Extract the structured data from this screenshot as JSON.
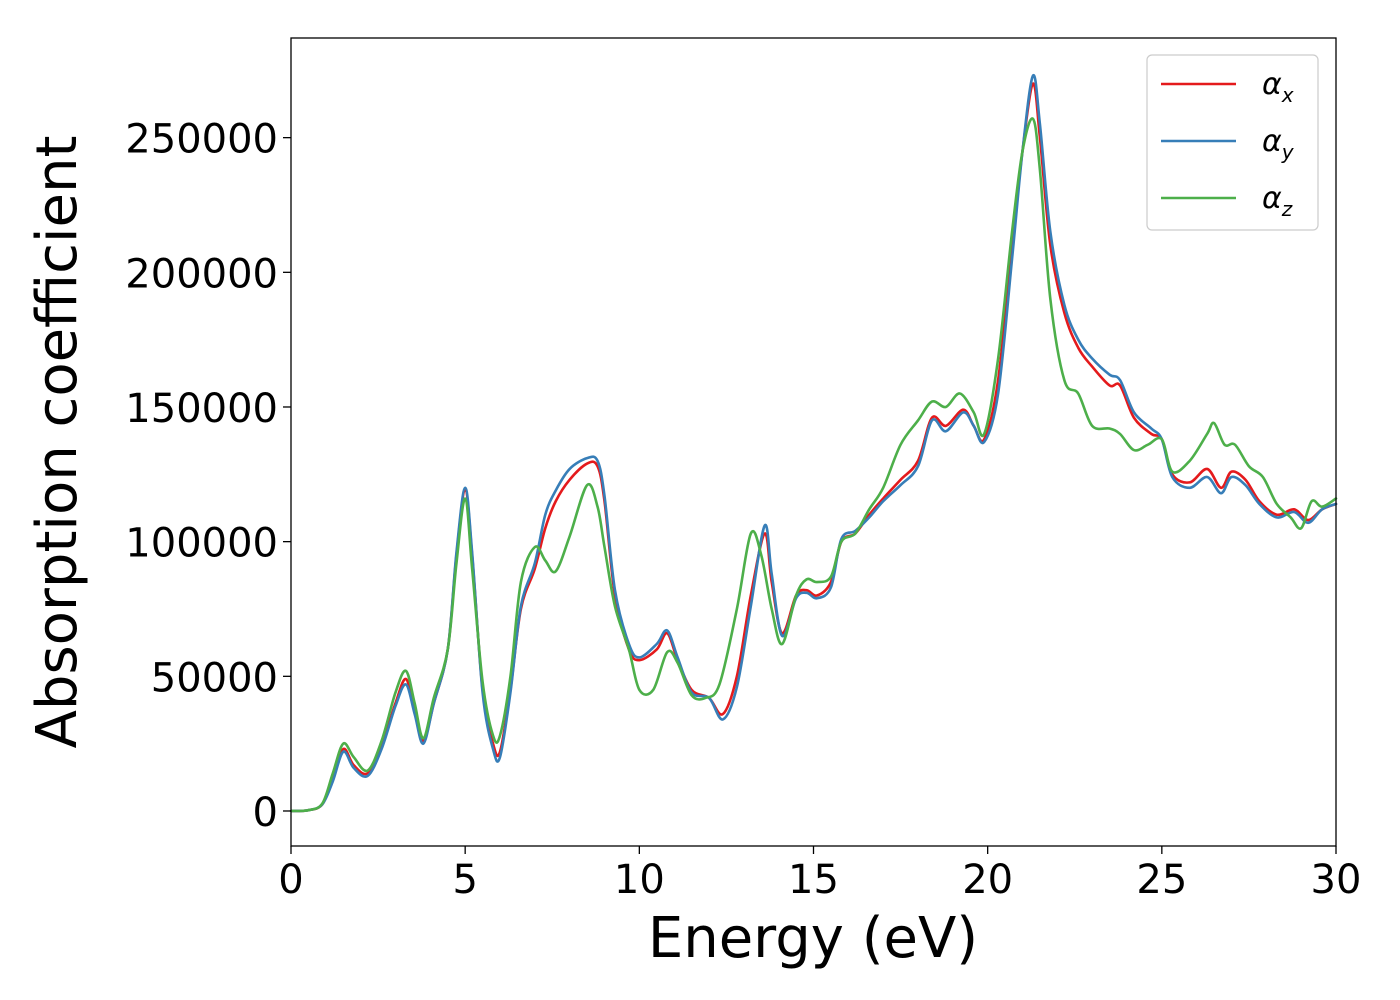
{
  "chart_data": {
    "type": "line",
    "xlabel": "Energy (eV)",
    "ylabel": "Absorption coefficient",
    "xlim": [
      0,
      30
    ],
    "ylim": [
      -13000,
      287000
    ],
    "xticks": [
      0,
      5,
      10,
      15,
      20,
      25,
      30
    ],
    "xtick_labels": [
      "0",
      "5",
      "10",
      "15",
      "20",
      "25",
      "30"
    ],
    "yticks": [
      0,
      50000,
      100000,
      150000,
      200000,
      250000
    ],
    "ytick_labels": [
      "0",
      "50000",
      "100000",
      "150000",
      "200000",
      "250000"
    ],
    "grid": false,
    "legend_position": "top-right",
    "series": [
      {
        "name": "αx",
        "symbol": "α",
        "subscript": "x",
        "color": "#e41a1c",
        "points": [
          [
            0,
            0
          ],
          [
            0.5,
            300
          ],
          [
            0.9,
            2500
          ],
          [
            1.2,
            12000
          ],
          [
            1.5,
            23000
          ],
          [
            1.8,
            17000
          ],
          [
            2.2,
            14000
          ],
          [
            2.6,
            24000
          ],
          [
            3.0,
            40000
          ],
          [
            3.3,
            49000
          ],
          [
            3.55,
            37000
          ],
          [
            3.8,
            26000
          ],
          [
            4.1,
            40000
          ],
          [
            4.5,
            60000
          ],
          [
            4.75,
            95000
          ],
          [
            5.0,
            119000
          ],
          [
            5.2,
            95000
          ],
          [
            5.5,
            45000
          ],
          [
            5.8,
            25000
          ],
          [
            6.0,
            22000
          ],
          [
            6.3,
            45000
          ],
          [
            6.6,
            75000
          ],
          [
            7.0,
            90000
          ],
          [
            7.3,
            105000
          ],
          [
            7.6,
            115000
          ],
          [
            8.0,
            123000
          ],
          [
            8.5,
            129000
          ],
          [
            8.8,
            128000
          ],
          [
            9.0,
            115000
          ],
          [
            9.3,
            80000
          ],
          [
            9.7,
            60000
          ],
          [
            10.0,
            56000
          ],
          [
            10.5,
            60000
          ],
          [
            10.8,
            66000
          ],
          [
            11.1,
            56000
          ],
          [
            11.5,
            45000
          ],
          [
            12.0,
            42000
          ],
          [
            12.4,
            36000
          ],
          [
            12.8,
            50000
          ],
          [
            13.2,
            80000
          ],
          [
            13.6,
            103000
          ],
          [
            13.8,
            85000
          ],
          [
            14.1,
            66000
          ],
          [
            14.5,
            80000
          ],
          [
            14.8,
            82000
          ],
          [
            15.1,
            80000
          ],
          [
            15.5,
            85000
          ],
          [
            15.8,
            100000
          ],
          [
            16.2,
            103000
          ],
          [
            16.6,
            110000
          ],
          [
            17.0,
            116000
          ],
          [
            17.5,
            123000
          ],
          [
            18.0,
            130000
          ],
          [
            18.4,
            146000
          ],
          [
            18.8,
            143000
          ],
          [
            19.3,
            149000
          ],
          [
            19.6,
            143000
          ],
          [
            19.9,
            138000
          ],
          [
            20.3,
            160000
          ],
          [
            20.7,
            210000
          ],
          [
            21.0,
            245000
          ],
          [
            21.3,
            270000
          ],
          [
            21.5,
            250000
          ],
          [
            21.8,
            210000
          ],
          [
            22.2,
            185000
          ],
          [
            22.6,
            172000
          ],
          [
            23.0,
            165000
          ],
          [
            23.5,
            158000
          ],
          [
            23.8,
            158000
          ],
          [
            24.2,
            146000
          ],
          [
            24.7,
            140000
          ],
          [
            25.0,
            138000
          ],
          [
            25.3,
            125000
          ],
          [
            25.8,
            122000
          ],
          [
            26.3,
            127000
          ],
          [
            26.7,
            120000
          ],
          [
            27.0,
            126000
          ],
          [
            27.4,
            123000
          ],
          [
            27.8,
            115000
          ],
          [
            28.3,
            110000
          ],
          [
            28.8,
            112000
          ],
          [
            29.2,
            108000
          ],
          [
            29.6,
            112000
          ],
          [
            30.0,
            114000
          ]
        ]
      },
      {
        "name": "αy",
        "symbol": "α",
        "subscript": "y",
        "color": "#377eb8",
        "points": [
          [
            0,
            0
          ],
          [
            0.5,
            300
          ],
          [
            0.9,
            2500
          ],
          [
            1.2,
            11000
          ],
          [
            1.5,
            22000
          ],
          [
            1.8,
            16000
          ],
          [
            2.2,
            13000
          ],
          [
            2.6,
            23000
          ],
          [
            3.0,
            39000
          ],
          [
            3.3,
            47000
          ],
          [
            3.55,
            36000
          ],
          [
            3.8,
            25000
          ],
          [
            4.1,
            40000
          ],
          [
            4.5,
            60000
          ],
          [
            4.75,
            96000
          ],
          [
            5.0,
            120000
          ],
          [
            5.2,
            96000
          ],
          [
            5.5,
            44000
          ],
          [
            5.8,
            23000
          ],
          [
            6.0,
            20000
          ],
          [
            6.3,
            44000
          ],
          [
            6.6,
            76000
          ],
          [
            7.0,
            92000
          ],
          [
            7.3,
            110000
          ],
          [
            7.6,
            119000
          ],
          [
            8.0,
            127000
          ],
          [
            8.5,
            131000
          ],
          [
            8.8,
            130000
          ],
          [
            9.0,
            117000
          ],
          [
            9.3,
            82000
          ],
          [
            9.7,
            62000
          ],
          [
            10.0,
            57000
          ],
          [
            10.5,
            62000
          ],
          [
            10.8,
            67000
          ],
          [
            11.1,
            57000
          ],
          [
            11.5,
            44000
          ],
          [
            12.0,
            42000
          ],
          [
            12.4,
            34000
          ],
          [
            12.8,
            46000
          ],
          [
            13.2,
            76000
          ],
          [
            13.6,
            106000
          ],
          [
            13.8,
            88000
          ],
          [
            14.1,
            65000
          ],
          [
            14.5,
            79000
          ],
          [
            14.8,
            81000
          ],
          [
            15.1,
            79000
          ],
          [
            15.5,
            83000
          ],
          [
            15.8,
            101000
          ],
          [
            16.2,
            104000
          ],
          [
            16.6,
            109000
          ],
          [
            17.0,
            115000
          ],
          [
            17.5,
            121000
          ],
          [
            18.0,
            128000
          ],
          [
            18.4,
            145000
          ],
          [
            18.8,
            141000
          ],
          [
            19.3,
            148000
          ],
          [
            19.6,
            143000
          ],
          [
            19.9,
            137000
          ],
          [
            20.3,
            155000
          ],
          [
            20.7,
            205000
          ],
          [
            21.0,
            245000
          ],
          [
            21.3,
            273000
          ],
          [
            21.5,
            255000
          ],
          [
            21.8,
            215000
          ],
          [
            22.2,
            188000
          ],
          [
            22.6,
            175000
          ],
          [
            23.0,
            168000
          ],
          [
            23.5,
            162000
          ],
          [
            23.8,
            160000
          ],
          [
            24.2,
            148000
          ],
          [
            24.7,
            142000
          ],
          [
            25.0,
            138000
          ],
          [
            25.3,
            124000
          ],
          [
            25.8,
            120000
          ],
          [
            26.3,
            124000
          ],
          [
            26.7,
            118000
          ],
          [
            27.0,
            124000
          ],
          [
            27.4,
            121000
          ],
          [
            27.8,
            114000
          ],
          [
            28.3,
            109000
          ],
          [
            28.8,
            111000
          ],
          [
            29.2,
            107000
          ],
          [
            29.6,
            112000
          ],
          [
            30.0,
            114000
          ]
        ]
      },
      {
        "name": "αz",
        "symbol": "α",
        "subscript": "z",
        "color": "#4daf4a",
        "points": [
          [
            0,
            0
          ],
          [
            0.5,
            300
          ],
          [
            0.9,
            2800
          ],
          [
            1.2,
            14000
          ],
          [
            1.5,
            25000
          ],
          [
            1.8,
            20000
          ],
          [
            2.2,
            15000
          ],
          [
            2.6,
            26000
          ],
          [
            3.0,
            44000
          ],
          [
            3.3,
            52000
          ],
          [
            3.55,
            40000
          ],
          [
            3.8,
            27000
          ],
          [
            4.1,
            42000
          ],
          [
            4.5,
            60000
          ],
          [
            4.75,
            92000
          ],
          [
            5.0,
            116000
          ],
          [
            5.2,
            90000
          ],
          [
            5.5,
            48000
          ],
          [
            5.8,
            28000
          ],
          [
            6.0,
            28000
          ],
          [
            6.3,
            50000
          ],
          [
            6.6,
            85000
          ],
          [
            7.0,
            98000
          ],
          [
            7.3,
            93000
          ],
          [
            7.6,
            89000
          ],
          [
            8.0,
            102000
          ],
          [
            8.5,
            121000
          ],
          [
            8.8,
            113000
          ],
          [
            9.0,
            98000
          ],
          [
            9.3,
            76000
          ],
          [
            9.7,
            60000
          ],
          [
            10.0,
            45000
          ],
          [
            10.4,
            45000
          ],
          [
            10.8,
            59000
          ],
          [
            11.1,
            55000
          ],
          [
            11.5,
            43000
          ],
          [
            11.9,
            42000
          ],
          [
            12.3,
            47000
          ],
          [
            12.8,
            75000
          ],
          [
            13.2,
            103000
          ],
          [
            13.5,
            95000
          ],
          [
            13.8,
            75000
          ],
          [
            14.1,
            62000
          ],
          [
            14.5,
            80000
          ],
          [
            14.8,
            86000
          ],
          [
            15.1,
            85000
          ],
          [
            15.5,
            87000
          ],
          [
            15.8,
            100000
          ],
          [
            16.2,
            103000
          ],
          [
            16.6,
            112000
          ],
          [
            17.0,
            120000
          ],
          [
            17.5,
            136000
          ],
          [
            18.0,
            145000
          ],
          [
            18.4,
            152000
          ],
          [
            18.8,
            150000
          ],
          [
            19.2,
            155000
          ],
          [
            19.6,
            148000
          ],
          [
            19.9,
            140000
          ],
          [
            20.3,
            168000
          ],
          [
            20.7,
            215000
          ],
          [
            21.0,
            245000
          ],
          [
            21.3,
            257000
          ],
          [
            21.5,
            238000
          ],
          [
            21.8,
            190000
          ],
          [
            22.2,
            160000
          ],
          [
            22.6,
            155000
          ],
          [
            23.0,
            143000
          ],
          [
            23.5,
            142000
          ],
          [
            23.8,
            140000
          ],
          [
            24.2,
            134000
          ],
          [
            24.6,
            136000
          ],
          [
            25.0,
            138000
          ],
          [
            25.3,
            126000
          ],
          [
            25.8,
            130000
          ],
          [
            26.3,
            140000
          ],
          [
            26.5,
            144000
          ],
          [
            26.8,
            136000
          ],
          [
            27.1,
            136000
          ],
          [
            27.5,
            128000
          ],
          [
            27.9,
            124000
          ],
          [
            28.3,
            114000
          ],
          [
            28.7,
            109000
          ],
          [
            29.0,
            105000
          ],
          [
            29.3,
            115000
          ],
          [
            29.6,
            113000
          ],
          [
            30.0,
            116000
          ]
        ]
      }
    ]
  }
}
